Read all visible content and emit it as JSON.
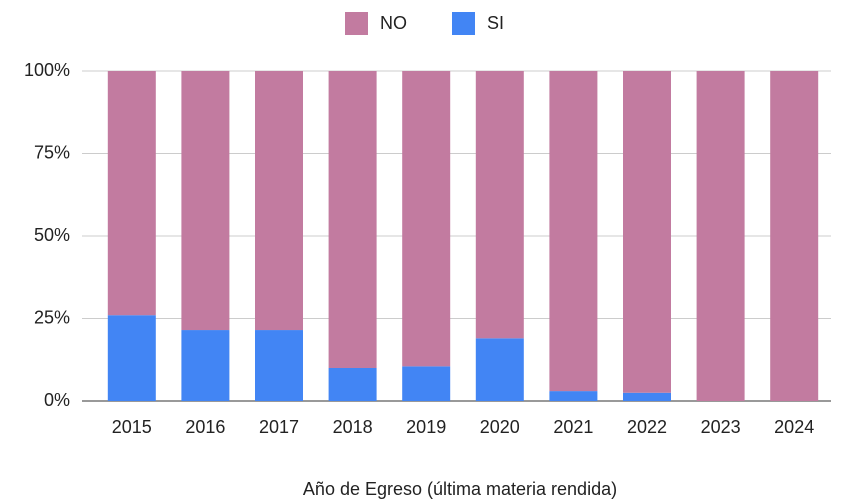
{
  "chart_data": {
    "type": "stacked_bar_percent",
    "x_label": "Año de Egreso (última materia rendida)",
    "categories": [
      "2015",
      "2016",
      "2017",
      "2018",
      "2019",
      "2020",
      "2021",
      "2022",
      "2023",
      "2024"
    ],
    "series": [
      {
        "name": "NO",
        "color": "#c27ba0",
        "values": [
          74,
          78.5,
          78.5,
          90,
          89.5,
          81,
          97,
          97.5,
          100,
          100
        ]
      },
      {
        "name": "SI",
        "color": "#4285f4",
        "values": [
          26,
          21.5,
          21.5,
          10,
          10.5,
          19,
          3,
          2.5,
          0,
          0
        ]
      }
    ],
    "ylim": [
      0,
      100
    ],
    "yticks": [
      {
        "value": 0,
        "label": "0%"
      },
      {
        "value": 25,
        "label": "25%"
      },
      {
        "value": 50,
        "label": "50%"
      },
      {
        "value": 75,
        "label": "75%"
      },
      {
        "value": 100,
        "label": "100%"
      }
    ],
    "grid": true,
    "legend": "top"
  }
}
